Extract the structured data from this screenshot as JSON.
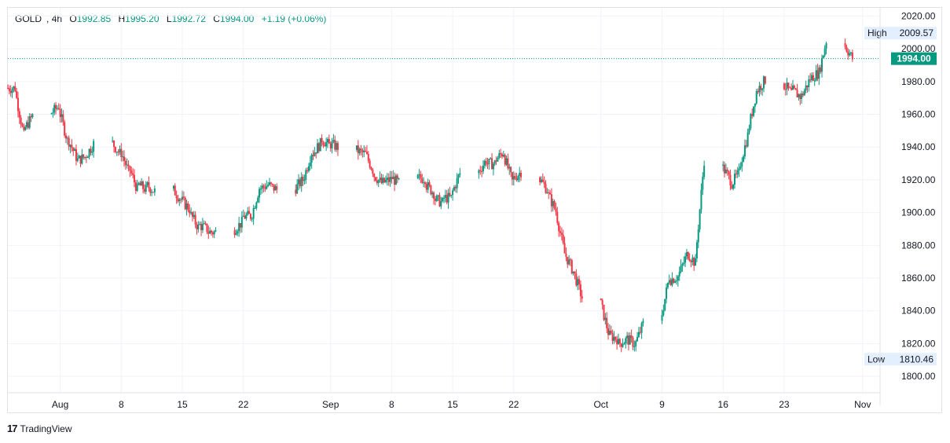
{
  "legend": {
    "symbol": "GOLD",
    "interval": "4h",
    "open_label": "O",
    "open": "1992.85",
    "high_label": "H",
    "high": "1995.20",
    "low_label": "L",
    "low": "1992.72",
    "close_label": "C",
    "close": "1994.00",
    "change": "+1.19 (+0.06%)"
  },
  "footer": {
    "logo": "17",
    "brand": "TradingView"
  },
  "colors": {
    "up": "#089981",
    "down": "#f23645",
    "grid": "#f0f3fa",
    "axis_text": "#131722",
    "price_line": "#089981",
    "label_bg": "#e3effd"
  },
  "chart_data": {
    "type": "candlestick",
    "symbol": "GOLD",
    "interval": "4h",
    "ylim": [
      1790,
      2025
    ],
    "y_ticks": [
      1800,
      1820,
      1840,
      1860,
      1880,
      1900,
      1920,
      1940,
      1960,
      1980,
      2000,
      2020
    ],
    "y_tick_labels": [
      "1800.00",
      "1820.00",
      "1840.00",
      "1860.00",
      "1880.00",
      "1900.00",
      "1920.00",
      "1940.00",
      "1960.00",
      "1980.00",
      "2000.00",
      "2020.00"
    ],
    "x_ticks": [
      {
        "label": "Aug",
        "date": "2023-08-01"
      },
      {
        "label": "8",
        "date": "2023-08-08"
      },
      {
        "label": "15",
        "date": "2023-08-15"
      },
      {
        "label": "22",
        "date": "2023-08-22"
      },
      {
        "label": "Sep",
        "date": "2023-09-01"
      },
      {
        "label": "8",
        "date": "2023-09-08"
      },
      {
        "label": "15",
        "date": "2023-09-15"
      },
      {
        "label": "22",
        "date": "2023-09-22"
      },
      {
        "label": "Oct",
        "date": "2023-10-02"
      },
      {
        "label": "9",
        "date": "2023-10-09"
      },
      {
        "label": "16",
        "date": "2023-10-16"
      },
      {
        "label": "23",
        "date": "2023-10-23"
      },
      {
        "label": "Nov",
        "date": "2023-11-01"
      }
    ],
    "x_range": [
      "2023-07-26",
      "2023-11-03"
    ],
    "last_price": 1994.0,
    "last_price_label": "1994.00",
    "high_marker": {
      "label": "High",
      "value": "2009.57",
      "price": 2009.57
    },
    "low_marker": {
      "label": "Low",
      "value": "1810.46",
      "price": 1810.46
    },
    "daily_close": [
      [
        "2023-07-26",
        1976
      ],
      [
        "2023-07-27",
        1947
      ],
      [
        "2023-07-28",
        1959
      ],
      [
        "2023-07-31",
        1965
      ],
      [
        "2023-08-01",
        1944
      ],
      [
        "2023-08-02",
        1934
      ],
      [
        "2023-08-03",
        1934
      ],
      [
        "2023-08-04",
        1942
      ],
      [
        "2023-08-07",
        1936
      ],
      [
        "2023-08-08",
        1925
      ],
      [
        "2023-08-09",
        1914
      ],
      [
        "2023-08-10",
        1914
      ],
      [
        "2023-08-11",
        1913
      ],
      [
        "2023-08-14",
        1908
      ],
      [
        "2023-08-15",
        1902
      ],
      [
        "2023-08-16",
        1891
      ],
      [
        "2023-08-17",
        1890
      ],
      [
        "2023-08-18",
        1888
      ],
      [
        "2023-08-21",
        1894
      ],
      [
        "2023-08-22",
        1898
      ],
      [
        "2023-08-23",
        1915
      ],
      [
        "2023-08-24",
        1917
      ],
      [
        "2023-08-25",
        1914
      ],
      [
        "2023-08-28",
        1920
      ],
      [
        "2023-08-29",
        1937
      ],
      [
        "2023-08-30",
        1942
      ],
      [
        "2023-08-31",
        1941
      ],
      [
        "2023-09-01",
        1940
      ],
      [
        "2023-09-04",
        1936
      ],
      [
        "2023-09-05",
        1926
      ],
      [
        "2023-09-06",
        1918
      ],
      [
        "2023-09-07",
        1920
      ],
      [
        "2023-09-08",
        1918
      ],
      [
        "2023-09-11",
        1921
      ],
      [
        "2023-09-12",
        1912
      ],
      [
        "2023-09-13",
        1906
      ],
      [
        "2023-09-14",
        1909
      ],
      [
        "2023-09-15",
        1924
      ],
      [
        "2023-09-18",
        1932
      ],
      [
        "2023-09-19",
        1930
      ],
      [
        "2023-09-20",
        1937
      ],
      [
        "2023-09-21",
        1919
      ],
      [
        "2023-09-22",
        1925
      ],
      [
        "2023-09-25",
        1914
      ],
      [
        "2023-09-26",
        1901
      ],
      [
        "2023-09-27",
        1875
      ],
      [
        "2023-09-28",
        1864
      ],
      [
        "2023-09-29",
        1848
      ],
      [
        "2023-10-02",
        1827
      ],
      [
        "2023-10-03",
        1823
      ],
      [
        "2023-10-04",
        1822
      ],
      [
        "2023-10-05",
        1820
      ],
      [
        "2023-10-06",
        1832
      ],
      [
        "2023-10-09",
        1861
      ],
      [
        "2023-10-10",
        1861
      ],
      [
        "2023-10-11",
        1874
      ],
      [
        "2023-10-12",
        1869
      ],
      [
        "2023-10-13",
        1932
      ],
      [
        "2023-10-16",
        1920
      ],
      [
        "2023-10-17",
        1924
      ],
      [
        "2023-10-18",
        1947
      ],
      [
        "2023-10-19",
        1974
      ],
      [
        "2023-10-20",
        1981
      ],
      [
        "2023-10-23",
        1973
      ],
      [
        "2023-10-24",
        1971
      ],
      [
        "2023-10-25",
        1980
      ],
      [
        "2023-10-26",
        1985
      ],
      [
        "2023-10-27",
        2005
      ],
      [
        "2023-10-30",
        1994
      ]
    ]
  }
}
